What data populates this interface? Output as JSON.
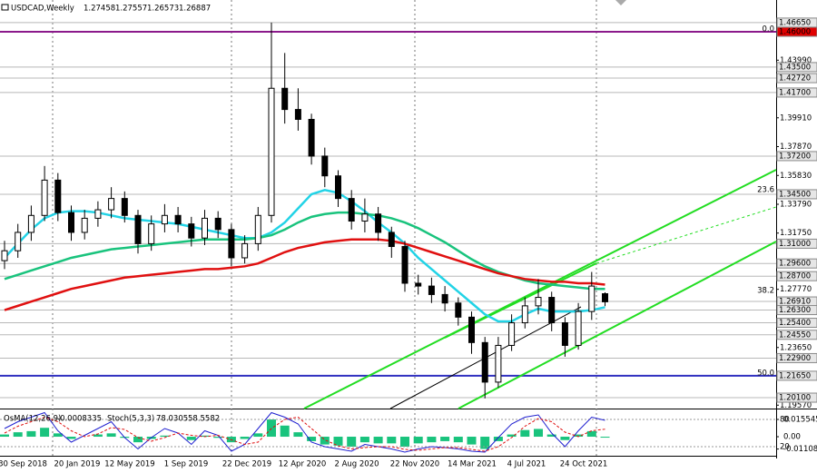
{
  "chart_data": {
    "type": "candlestick",
    "symbol": "USDCAD,Weekly",
    "open": [
      1.298,
      1.305,
      1.318,
      1.33,
      1.355,
      1.332,
      1.318,
      1.328,
      1.334,
      1.342,
      1.33,
      1.31,
      1.324,
      1.33,
      1.324,
      1.314,
      1.328,
      1.32,
      1.3,
      1.31,
      1.33,
      1.42,
      1.405,
      1.398,
      1.372,
      1.358,
      1.342,
      1.326,
      1.331,
      1.318,
      1.308,
      1.282,
      1.28,
      1.274,
      1.268,
      1.258,
      1.24,
      1.212,
      1.238,
      1.254,
      1.266,
      1.272,
      1.254,
      1.238,
      1.262,
      1.27458
    ],
    "high": [
      1.312,
      1.324,
      1.337,
      1.365,
      1.36,
      1.337,
      1.334,
      1.34,
      1.35,
      1.347,
      1.334,
      1.33,
      1.338,
      1.336,
      1.329,
      1.334,
      1.333,
      1.324,
      1.316,
      1.336,
      1.4665,
      1.445,
      1.42,
      1.402,
      1.378,
      1.362,
      1.348,
      1.342,
      1.336,
      1.322,
      1.312,
      1.288,
      1.286,
      1.28,
      1.272,
      1.262,
      1.244,
      1.244,
      1.26,
      1.272,
      1.285,
      1.276,
      1.258,
      1.268,
      1.29,
      1.27557
    ],
    "low": [
      1.292,
      1.3,
      1.312,
      1.326,
      1.326,
      1.312,
      1.313,
      1.322,
      1.328,
      1.325,
      1.303,
      1.305,
      1.318,
      1.318,
      1.308,
      1.309,
      1.314,
      1.294,
      1.296,
      1.305,
      1.325,
      1.395,
      1.39,
      1.366,
      1.35,
      1.336,
      1.32,
      1.318,
      1.312,
      1.3,
      1.276,
      1.274,
      1.268,
      1.262,
      1.252,
      1.232,
      1.2005,
      1.208,
      1.234,
      1.25,
      1.26,
      1.248,
      1.23,
      1.235,
      1.256,
      1.26573
    ],
    "close": [
      1.305,
      1.318,
      1.33,
      1.355,
      1.332,
      1.318,
      1.328,
      1.334,
      1.342,
      1.33,
      1.31,
      1.324,
      1.33,
      1.324,
      1.314,
      1.328,
      1.32,
      1.3,
      1.31,
      1.33,
      1.42,
      1.405,
      1.398,
      1.372,
      1.358,
      1.342,
      1.326,
      1.331,
      1.318,
      1.308,
      1.282,
      1.28,
      1.274,
      1.268,
      1.258,
      1.24,
      1.212,
      1.238,
      1.254,
      1.266,
      1.272,
      1.254,
      1.238,
      1.262,
      1.28,
      1.26887
    ],
    "series": [
      {
        "color": "#22d3e6",
        "values": [
          1.3,
          1.31,
          1.32,
          1.328,
          1.332,
          1.333,
          1.333,
          1.332,
          1.33,
          1.328,
          1.327,
          1.326,
          1.325,
          1.324,
          1.322,
          1.32,
          1.318,
          1.316,
          1.314,
          1.314,
          1.318,
          1.325,
          1.335,
          1.345,
          1.348,
          1.346,
          1.34,
          1.333,
          1.325,
          1.318,
          1.31,
          1.3,
          1.292,
          1.284,
          1.276,
          1.268,
          1.26,
          1.255,
          1.255,
          1.26,
          1.264,
          1.262,
          1.262,
          1.262,
          1.263,
          1.265
        ]
      },
      {
        "color": "#19c37d",
        "values": [
          1.285,
          1.288,
          1.291,
          1.294,
          1.297,
          1.3,
          1.302,
          1.304,
          1.306,
          1.307,
          1.308,
          1.309,
          1.31,
          1.311,
          1.312,
          1.313,
          1.313,
          1.313,
          1.313,
          1.314,
          1.316,
          1.32,
          1.325,
          1.329,
          1.331,
          1.332,
          1.332,
          1.331,
          1.33,
          1.328,
          1.325,
          1.321,
          1.316,
          1.311,
          1.305,
          1.299,
          1.294,
          1.29,
          1.287,
          1.284,
          1.282,
          1.281,
          1.28,
          1.279,
          1.278,
          1.278
        ]
      },
      {
        "color": "#e01010",
        "values": [
          1.263,
          1.266,
          1.269,
          1.272,
          1.275,
          1.278,
          1.28,
          1.282,
          1.284,
          1.286,
          1.287,
          1.288,
          1.289,
          1.29,
          1.291,
          1.292,
          1.292,
          1.293,
          1.294,
          1.296,
          1.3,
          1.304,
          1.307,
          1.309,
          1.311,
          1.312,
          1.313,
          1.313,
          1.313,
          1.312,
          1.31,
          1.307,
          1.304,
          1.301,
          1.298,
          1.295,
          1.292,
          1.289,
          1.287,
          1.285,
          1.284,
          1.283,
          1.283,
          1.282,
          1.282,
          1.281
        ]
      }
    ],
    "ylim": [
      1.1933,
      1.4825
    ],
    "yticks": [
      {
        "value": 1.4399,
        "label": "1.43990"
      },
      {
        "value": 1.3991,
        "label": "1.39910"
      },
      {
        "value": 1.3787,
        "label": "1.37870"
      },
      {
        "value": 1.3583,
        "label": "1.35830"
      },
      {
        "value": 1.3379,
        "label": "1.33790"
      },
      {
        "value": 1.3175,
        "label": "1.31750"
      },
      {
        "value": 1.2777,
        "label": "1.27770"
      },
      {
        "value": 1.2365,
        "label": "1.23650"
      },
      {
        "value": 1.1957,
        "label": "1.19570"
      }
    ],
    "levels": [
      {
        "value": 1.4665,
        "label": "1.46650"
      },
      {
        "value": 1.435,
        "label": "1.43500"
      },
      {
        "value": 1.4272,
        "label": "1.42720"
      },
      {
        "value": 1.417,
        "label": "1.41700"
      },
      {
        "value": 1.372,
        "label": "1.37200"
      },
      {
        "value": 1.345,
        "label": "1.34500"
      },
      {
        "value": 1.31,
        "label": "1.31000"
      },
      {
        "value": 1.296,
        "label": "1.29600"
      },
      {
        "value": 1.287,
        "label": "1.28700"
      },
      {
        "value": 1.2691,
        "label": "1.26910"
      },
      {
        "value": 1.263,
        "label": "1.26300"
      },
      {
        "value": 1.254,
        "label": "1.25400"
      },
      {
        "value": 1.2455,
        "label": "1.24550"
      },
      {
        "value": 1.229,
        "label": "1.22900"
      },
      {
        "value": 1.201,
        "label": "1.20100"
      }
    ],
    "resistance": {
      "value": 1.46,
      "label": "1.46000",
      "color": "#8b1a8b"
    },
    "support": {
      "value": 1.2165,
      "label": "1.21650",
      "color": "#3030c0"
    },
    "fib_levels": [
      {
        "value": 1.462,
        "label": "0.0"
      },
      {
        "value": 1.3482,
        "label": "23.6"
      },
      {
        "value": 1.2768,
        "label": "38.2"
      },
      {
        "value": 1.2185,
        "label": "50.0"
      }
    ],
    "x_labels": [
      "30 Sep 2018",
      "20 Jan 2019",
      "12 May 2019",
      "1 Sep 2019",
      "22 Dec 2019",
      "12 Apr 2020",
      "2 Aug 2020",
      "22 Nov 2020",
      "14 Mar 2021",
      "4 Jul 2021",
      "24 Oct 2021"
    ],
    "indicator": {
      "osma_name": "OsMA(12,26,9)",
      "stoch_name": "Stoch(5,3,3)",
      "osma": [
        0.002,
        0.004,
        0.005,
        0.008,
        0.003,
        -0.002,
        0,
        0.002,
        0.003,
        -0.001,
        -0.005,
        -0.002,
        0.001,
        0,
        -0.003,
        0.001,
        -0.001,
        -0.005,
        -0.002,
        0.003,
        0.0155,
        0.01,
        0.004,
        -0.004,
        -0.007,
        -0.008,
        -0.009,
        -0.005,
        -0.006,
        -0.006,
        -0.009,
        -0.006,
        -0.005,
        -0.004,
        -0.005,
        -0.007,
        -0.011,
        -0.004,
        0.002,
        0.006,
        0.007,
        0.002,
        -0.003,
        0.002,
        0.005,
        -0.0008335
      ],
      "stoch_main": [
        60,
        75,
        85,
        95,
        55,
        30,
        45,
        60,
        75,
        40,
        15,
        40,
        60,
        50,
        25,
        55,
        45,
        10,
        25,
        60,
        95,
        85,
        70,
        30,
        20,
        15,
        10,
        25,
        20,
        15,
        8,
        15,
        20,
        18,
        15,
        10,
        8,
        40,
        70,
        85,
        90,
        50,
        20,
        55,
        85,
        78.0305
      ],
      "stoch_signal": [
        50,
        65,
        75,
        85,
        75,
        55,
        42,
        48,
        62,
        58,
        40,
        32,
        40,
        50,
        45,
        42,
        45,
        35,
        25,
        30,
        60,
        80,
        85,
        60,
        35,
        22,
        15,
        18,
        20,
        20,
        14,
        12,
        15,
        18,
        18,
        14,
        10,
        20,
        40,
        65,
        82,
        75,
        52,
        42,
        55,
        58.5582
      ],
      "osma_ylim": [
        -0.0155,
        0.0237
      ],
      "stoch_ylim": [
        4,
        100
      ],
      "osma_ticks": [
        0.0155457,
        {
          "value": 0,
          "label": "0.00"
        },
        -0.0110836
      ],
      "stoch_ticks": [
        80,
        20
      ]
    }
  }
}
